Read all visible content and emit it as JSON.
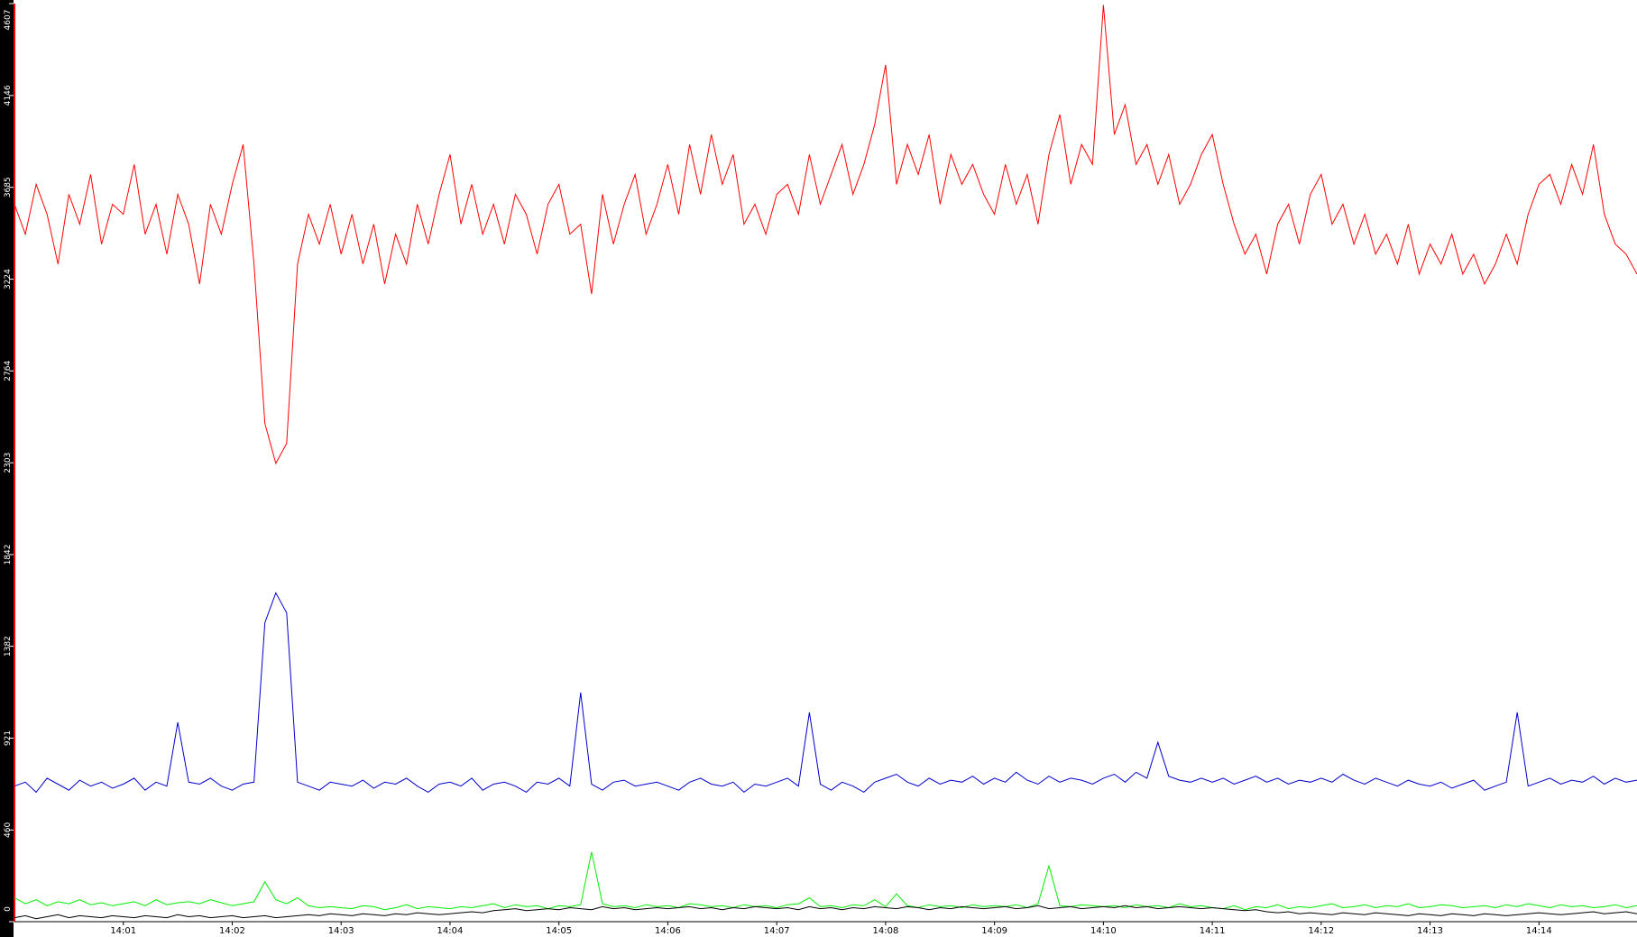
{
  "chart_data": {
    "type": "line",
    "x": [
      0,
      0.1,
      0.2,
      0.3,
      0.4,
      0.5,
      0.6,
      0.7,
      0.8,
      0.9,
      1,
      1.1,
      1.2,
      1.3,
      1.4,
      1.5,
      1.6,
      1.7,
      1.8,
      1.9,
      2,
      2.1,
      2.2,
      2.3,
      2.4,
      2.5,
      2.6,
      2.7,
      2.8,
      2.9,
      3,
      3.1,
      3.2,
      3.3,
      3.4,
      3.5,
      3.6,
      3.7,
      3.8,
      3.9,
      4,
      4.1,
      4.2,
      4.3,
      4.4,
      4.5,
      4.6,
      4.7,
      4.8,
      4.9,
      5,
      5.1,
      5.2,
      5.3,
      5.4,
      5.5,
      5.6,
      5.7,
      5.8,
      5.9,
      6,
      6.1,
      6.2,
      6.3,
      6.4,
      6.5,
      6.6,
      6.7,
      6.8,
      6.9,
      7,
      7.1,
      7.2,
      7.3,
      7.4,
      7.5,
      7.6,
      7.7,
      7.8,
      7.9,
      8,
      8.1,
      8.2,
      8.3,
      8.4,
      8.5,
      8.6,
      8.7,
      8.8,
      8.9,
      9,
      9.1,
      9.2,
      9.3,
      9.4,
      9.5,
      9.6,
      9.7,
      9.8,
      9.9,
      10,
      10.1,
      10.2,
      10.3,
      10.4,
      10.5,
      10.6,
      10.7,
      10.8,
      10.9,
      11,
      11.1,
      11.2,
      11.3,
      11.4,
      11.5,
      11.6,
      11.7,
      11.8,
      11.9,
      12,
      12.1,
      12.2,
      12.3,
      12.4,
      12.5,
      12.6,
      12.7,
      12.8,
      12.9,
      13,
      13.1,
      13.2,
      13.3,
      13.4,
      13.5,
      13.6,
      13.7,
      13.8,
      13.9,
      14,
      14.1,
      14.2,
      14.3,
      14.4,
      14.5,
      14.6,
      14.7,
      14.8,
      14.9
    ],
    "series": [
      {
        "color": "#ff0000",
        "values": [
          3600,
          3450,
          3700,
          3550,
          3300,
          3650,
          3500,
          3750,
          3400,
          3600,
          3550,
          3800,
          3450,
          3600,
          3350,
          3650,
          3500,
          3200,
          3600,
          3450,
          3700,
          3900,
          3300,
          2500,
          2300,
          2400,
          3300,
          3550,
          3400,
          3600,
          3350,
          3550,
          3300,
          3500,
          3200,
          3450,
          3300,
          3600,
          3400,
          3650,
          3850,
          3500,
          3700,
          3450,
          3600,
          3400,
          3650,
          3550,
          3350,
          3600,
          3700,
          3450,
          3500,
          3150,
          3650,
          3400,
          3600,
          3750,
          3450,
          3600,
          3800,
          3550,
          3900,
          3650,
          3950,
          3700,
          3850,
          3500,
          3600,
          3450,
          3650,
          3700,
          3550,
          3850,
          3600,
          3750,
          3900,
          3650,
          3800,
          4000,
          4300,
          3700,
          3900,
          3750,
          3950,
          3600,
          3850,
          3700,
          3800,
          3650,
          3550,
          3800,
          3600,
          3750,
          3500,
          3850,
          4050,
          3700,
          3900,
          3800,
          4600,
          3950,
          4100,
          3800,
          3900,
          3700,
          3850,
          3600,
          3700,
          3850,
          3950,
          3700,
          3500,
          3350,
          3450,
          3250,
          3500,
          3600,
          3400,
          3650,
          3750,
          3500,
          3600,
          3400,
          3550,
          3350,
          3450,
          3300,
          3500,
          3250,
          3400,
          3300,
          3450,
          3250,
          3350,
          3200,
          3300,
          3450,
          3300,
          3550,
          3700,
          3750,
          3600,
          3800,
          3650,
          3900,
          3550,
          3400,
          3350,
          3250
        ]
      },
      {
        "color": "#0000cc",
        "values": [
          680,
          700,
          650,
          720,
          690,
          660,
          710,
          680,
          700,
          670,
          690,
          720,
          660,
          700,
          680,
          1000,
          700,
          690,
          720,
          680,
          660,
          690,
          700,
          1500,
          1650,
          1550,
          700,
          680,
          660,
          700,
          690,
          680,
          710,
          670,
          700,
          690,
          720,
          680,
          650,
          690,
          700,
          680,
          720,
          660,
          690,
          700,
          680,
          650,
          700,
          690,
          720,
          680,
          1150,
          690,
          660,
          700,
          710,
          680,
          690,
          700,
          680,
          660,
          700,
          720,
          690,
          680,
          700,
          650,
          690,
          680,
          700,
          720,
          680,
          1050,
          690,
          660,
          700,
          680,
          650,
          700,
          720,
          740,
          700,
          680,
          720,
          690,
          710,
          700,
          730,
          690,
          720,
          700,
          750,
          710,
          690,
          730,
          700,
          720,
          710,
          690,
          720,
          740,
          700,
          750,
          720,
          900,
          730,
          710,
          700,
          720,
          700,
          720,
          690,
          710,
          730,
          700,
          720,
          690,
          710,
          700,
          720,
          700,
          740,
          710,
          690,
          720,
          700,
          680,
          710,
          690,
          680,
          700,
          670,
          690,
          710,
          660,
          680,
          700,
          1050,
          680,
          700,
          720,
          690,
          710,
          700,
          730,
          690,
          720,
          700,
          710
        ]
      },
      {
        "color": "#00ee00",
        "values": [
          120,
          90,
          110,
          80,
          100,
          90,
          110,
          85,
          95,
          80,
          90,
          100,
          80,
          110,
          85,
          95,
          100,
          90,
          110,
          95,
          80,
          90,
          100,
          200,
          110,
          90,
          120,
          80,
          70,
          75,
          70,
          65,
          80,
          75,
          60,
          70,
          85,
          65,
          75,
          70,
          65,
          75,
          70,
          80,
          90,
          70,
          85,
          75,
          80,
          65,
          80,
          75,
          85,
          350,
          90,
          75,
          80,
          70,
          85,
          75,
          80,
          70,
          90,
          85,
          75,
          80,
          70,
          85,
          75,
          80,
          70,
          85,
          90,
          120,
          75,
          80,
          70,
          85,
          80,
          110,
          75,
          140,
          80,
          70,
          85,
          75,
          80,
          70,
          85,
          75,
          80,
          75,
          85,
          70,
          90,
          280,
          80,
          75,
          85,
          80,
          75,
          80,
          70,
          85,
          75,
          80,
          70,
          90,
          75,
          80,
          70,
          65,
          80,
          60,
          75,
          70,
          85,
          65,
          75,
          70,
          80,
          90,
          70,
          75,
          85,
          70,
          80,
          75,
          90,
          70,
          75,
          85,
          80,
          70,
          75,
          80,
          70,
          85,
          75,
          90,
          80,
          70,
          85,
          75,
          80,
          70,
          75,
          85,
          70,
          80
        ]
      },
      {
        "color": "#000000",
        "values": [
          20,
          30,
          15,
          25,
          35,
          20,
          30,
          25,
          20,
          30,
          25,
          20,
          30,
          25,
          20,
          35,
          25,
          30,
          20,
          25,
          30,
          20,
          25,
          30,
          20,
          25,
          30,
          35,
          30,
          40,
          35,
          30,
          40,
          35,
          30,
          40,
          35,
          45,
          40,
          35,
          40,
          45,
          50,
          45,
          55,
          60,
          65,
          55,
          60,
          65,
          60,
          70,
          65,
          60,
          75,
          65,
          70,
          60,
          65,
          70,
          65,
          70,
          75,
          65,
          70,
          60,
          70,
          65,
          75,
          70,
          65,
          70,
          60,
          75,
          65,
          70,
          60,
          70,
          65,
          75,
          70,
          65,
          75,
          70,
          60,
          70,
          65,
          75,
          70,
          65,
          70,
          75,
          65,
          70,
          80,
          65,
          70,
          75,
          65,
          70,
          75,
          70,
          80,
          70,
          75,
          65,
          70,
          75,
          70,
          65,
          70,
          65,
          60,
          55,
          60,
          50,
          45,
          50,
          40,
          45,
          40,
          35,
          45,
          40,
          35,
          45,
          40,
          35,
          30,
          40,
          35,
          30,
          40,
          35,
          30,
          40,
          35,
          30,
          35,
          40,
          45,
          40,
          35,
          40,
          45,
          50,
          40,
          45,
          50,
          40
        ]
      }
    ],
    "xlim": [
      0,
      14.9
    ],
    "xticks": [
      {
        "value": 1,
        "label": "14:01"
      },
      {
        "value": 2,
        "label": "14:02"
      },
      {
        "value": 3,
        "label": "14:03"
      },
      {
        "value": 4,
        "label": "14:04"
      },
      {
        "value": 5,
        "label": "14:05"
      },
      {
        "value": 6,
        "label": "14:06"
      },
      {
        "value": 7,
        "label": "14:07"
      },
      {
        "value": 8,
        "label": "14:08"
      },
      {
        "value": 9,
        "label": "14:09"
      },
      {
        "value": 10,
        "label": "14:10"
      },
      {
        "value": 11,
        "label": "14:11"
      },
      {
        "value": 12,
        "label": "14:12"
      },
      {
        "value": 13,
        "label": "14:13"
      },
      {
        "value": 14,
        "label": "14:14"
      }
    ],
    "ylim": [
      0,
      4607
    ],
    "yticks": [
      0,
      460,
      921,
      1382,
      1842,
      2303,
      2764,
      3224,
      3685,
      4146,
      4607
    ]
  }
}
